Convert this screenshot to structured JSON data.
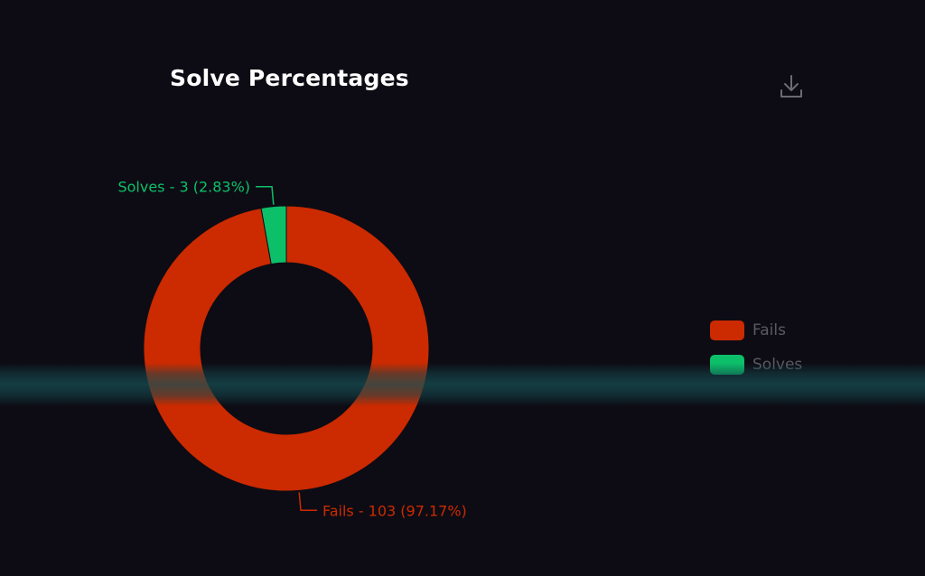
{
  "chart_data": {
    "type": "pie",
    "title": "Solve Percentages",
    "donut": true,
    "slices": [
      {
        "name": "Fails",
        "value": 103,
        "label": "Fails - 103 (97.17%)",
        "color": "#cc2a00"
      },
      {
        "name": "Solves",
        "value": 3,
        "label": "Solves - 3 (2.83%)",
        "color": "#0cc06a"
      }
    ],
    "legend": {
      "placement": "right",
      "items": [
        {
          "label": "Fails",
          "color": "#cc2a00"
        },
        {
          "label": "Solves",
          "color": "#0cc06a"
        }
      ]
    }
  },
  "toolbar": {
    "download_icon": "download-icon"
  }
}
